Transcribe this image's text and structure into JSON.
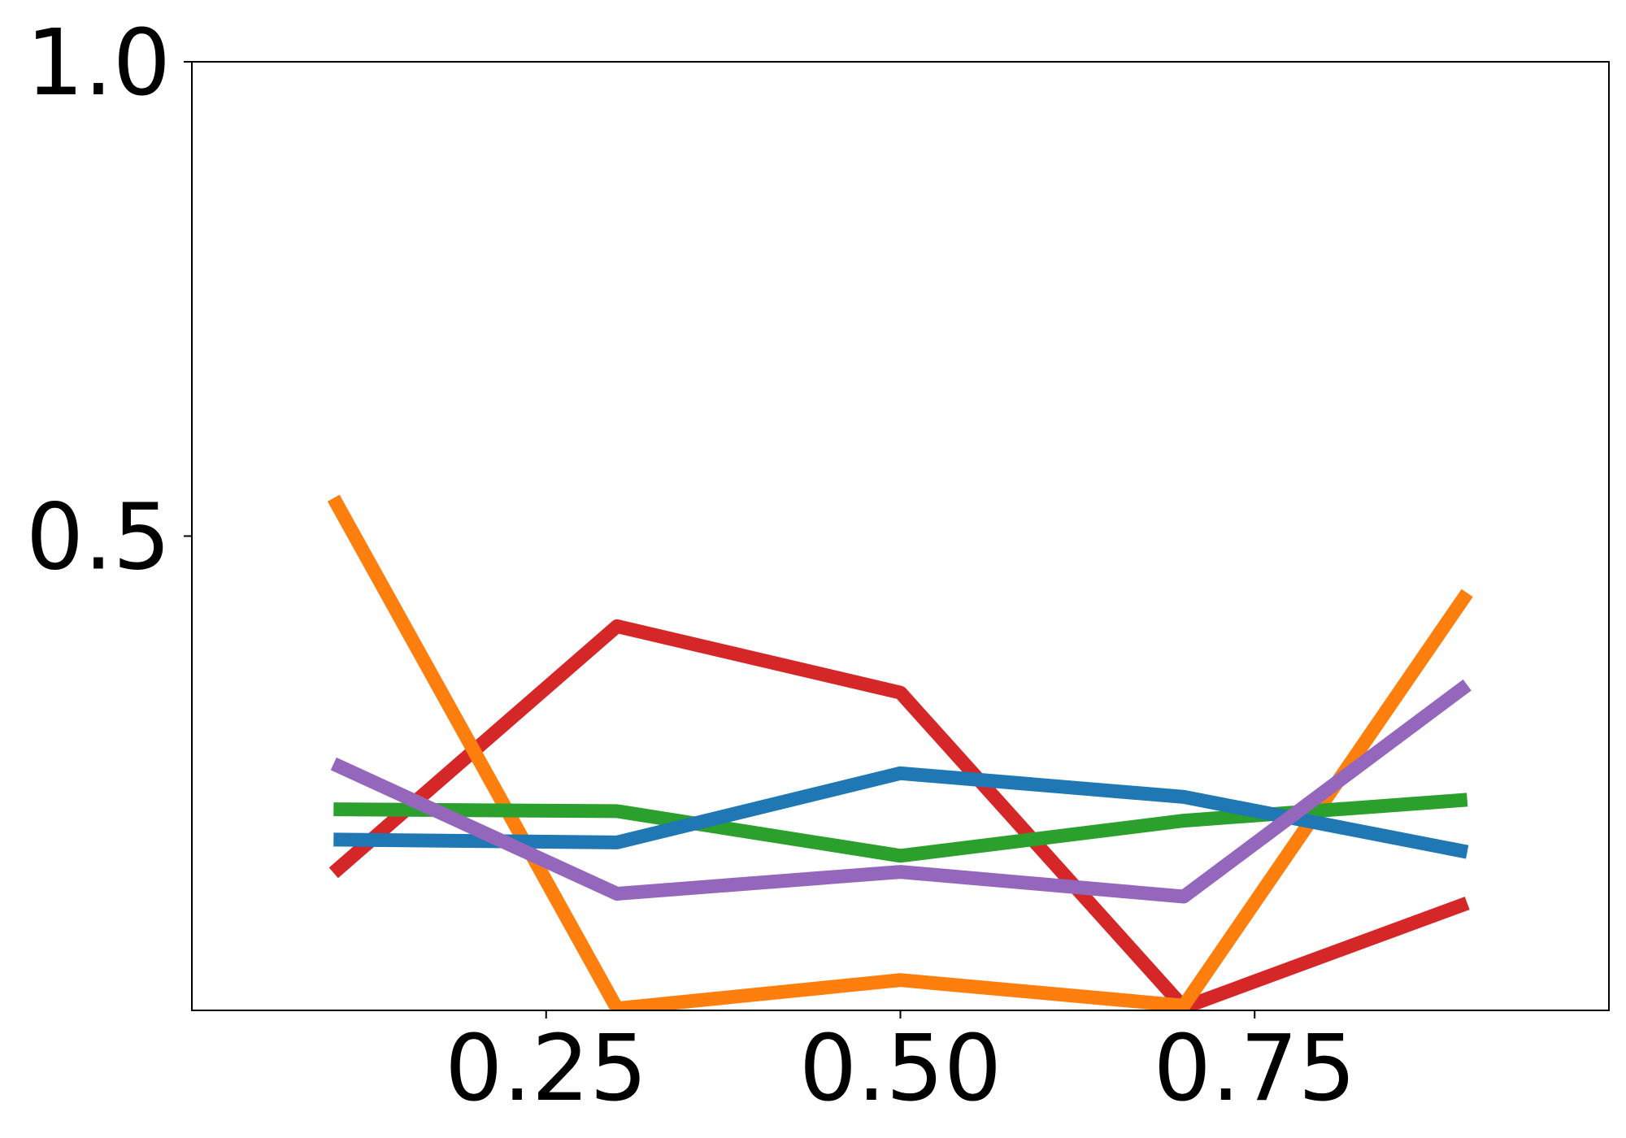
{
  "chart_data": {
    "type": "line",
    "title": "",
    "xlabel": "",
    "ylabel": "",
    "xlim": [
      0.0,
      1.0
    ],
    "ylim": [
      0.0,
      1.0
    ],
    "x_ticks": [
      {
        "value": 0.25,
        "label": "0.25"
      },
      {
        "value": 0.5,
        "label": "0.50"
      },
      {
        "value": 0.75,
        "label": "0.75"
      }
    ],
    "y_ticks": [
      {
        "value": 0.5,
        "label": "0.5"
      },
      {
        "value": 1.0,
        "label": "1.0"
      }
    ],
    "grid": false,
    "legend": "none",
    "x": [
      0.1,
      0.3,
      0.5,
      0.7,
      0.9
    ],
    "series": [
      {
        "color": "#d62728",
        "values": [
          0.145,
          0.405,
          0.335,
          0.003,
          0.113
        ]
      },
      {
        "color": "#ff7f0e",
        "values": [
          0.54,
          0.002,
          0.032,
          0.005,
          0.44
        ]
      },
      {
        "color": "#2ca02c",
        "values": [
          0.212,
          0.21,
          0.163,
          0.2,
          0.222
        ]
      },
      {
        "color": "#1f77b4",
        "values": [
          0.18,
          0.177,
          0.25,
          0.225,
          0.167
        ]
      },
      {
        "color": "#9467bd",
        "values": [
          0.26,
          0.123,
          0.146,
          0.12,
          0.343
        ]
      }
    ]
  }
}
